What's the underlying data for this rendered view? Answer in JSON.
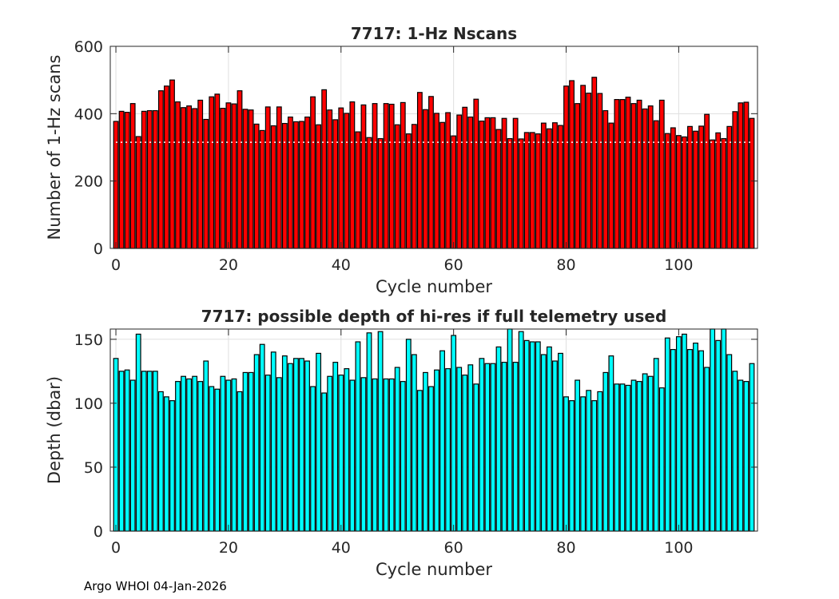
{
  "chart_data": [
    {
      "type": "bar",
      "title": "7717: 1-Hz Nscans",
      "xlabel": "Cycle number",
      "ylabel": "Number of 1-Hz scans",
      "xlim": [
        -1,
        114
      ],
      "ylim": [
        0,
        600
      ],
      "xticks": [
        0,
        20,
        40,
        60,
        80,
        100
      ],
      "yticks": [
        0,
        200,
        400,
        600
      ],
      "grid": true,
      "bar_color": "#ff0000",
      "reference_line": 315,
      "x_start": 0,
      "values": [
        377,
        407,
        404,
        430,
        332,
        407,
        409,
        409,
        468,
        482,
        500,
        435,
        418,
        423,
        415,
        440,
        383,
        450,
        458,
        416,
        432,
        429,
        468,
        413,
        411,
        369,
        350,
        420,
        364,
        420,
        371,
        390,
        376,
        377,
        390,
        450,
        367,
        471,
        411,
        382,
        417,
        401,
        435,
        346,
        426,
        329,
        430,
        326,
        430,
        428,
        367,
        433,
        340,
        368,
        463,
        412,
        451,
        401,
        374,
        403,
        334,
        396,
        419,
        390,
        443,
        378,
        388,
        388,
        353,
        386,
        326,
        386,
        325,
        344,
        344,
        340,
        372,
        355,
        373,
        365,
        482,
        498,
        430,
        484,
        461,
        508,
        460,
        409,
        372,
        442,
        442,
        449,
        430,
        440,
        414,
        423,
        379,
        440,
        341,
        358,
        335,
        331,
        362,
        348,
        363,
        398,
        322,
        343,
        326,
        362,
        406,
        432,
        434,
        386
      ]
    },
    {
      "type": "bar",
      "title": "7717: possible depth of hi-res if full telemetry used",
      "xlabel": "Cycle number",
      "ylabel": "Depth (dbar)",
      "xlim": [
        -1,
        114
      ],
      "ylim": [
        0,
        158
      ],
      "xticks": [
        0,
        20,
        40,
        60,
        80,
        100
      ],
      "yticks": [
        0,
        50,
        100,
        150
      ],
      "grid": true,
      "bar_color": "#00ffff",
      "x_start": 0,
      "values": [
        135,
        125,
        126,
        118,
        154,
        125,
        125,
        125,
        109,
        105,
        102,
        117,
        121,
        119,
        121,
        117,
        133,
        113,
        111,
        121,
        118,
        119,
        109,
        124,
        124,
        138,
        146,
        122,
        140,
        120,
        137,
        131,
        135,
        135,
        133,
        113,
        139,
        108,
        121,
        132,
        122,
        127,
        118,
        148,
        120,
        155,
        119,
        156,
        119,
        119,
        128,
        117,
        150,
        138,
        110,
        124,
        113,
        126,
        141,
        127,
        153,
        128,
        122,
        130,
        115,
        135,
        131,
        131,
        144,
        132,
        158,
        132,
        156,
        149,
        148,
        148,
        138,
        144,
        133,
        139,
        105,
        102,
        118,
        105,
        110,
        102,
        109,
        124,
        137,
        115,
        115,
        114,
        118,
        117,
        123,
        121,
        135,
        112,
        151,
        142,
        152,
        154,
        142,
        147,
        141,
        128,
        158,
        149,
        158,
        138,
        125,
        118,
        117,
        131
      ]
    }
  ],
  "footer": "Argo WHOI 04-Jan-2026"
}
